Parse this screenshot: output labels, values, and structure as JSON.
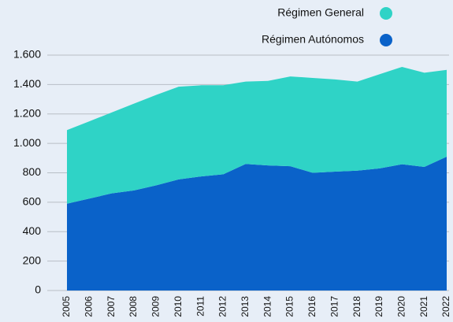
{
  "chart_data": {
    "type": "stacked-area",
    "categories": [
      "2005",
      "2006",
      "2007",
      "2008",
      "2009",
      "2010",
      "2011",
      "2012",
      "2013",
      "2014",
      "2015",
      "2016",
      "2017",
      "2018",
      "2019",
      "2020",
      "2021",
      "2022"
    ],
    "series": [
      {
        "name": "Régimen Autónomos",
        "color": "#0a62c9",
        "values": [
          590,
          625,
          660,
          680,
          715,
          755,
          775,
          790,
          860,
          850,
          845,
          800,
          808,
          815,
          830,
          858,
          840,
          910
        ]
      },
      {
        "name": "Régimen General",
        "color": "#2fd3c6",
        "values": [
          500,
          525,
          550,
          590,
          615,
          630,
          620,
          605,
          560,
          575,
          610,
          645,
          627,
          605,
          640,
          662,
          640,
          590
        ]
      }
    ],
    "ylim": [
      0,
      1600
    ],
    "yticks": [
      0,
      200,
      400,
      600,
      800,
      {
        "value": 1000,
        "label": "1.000"
      },
      {
        "value": 1200,
        "label": "1.200"
      },
      {
        "value": 1400,
        "label": "1.400"
      },
      {
        "value": 1600,
        "label": "1.600"
      }
    ],
    "grid": true,
    "legend": "top-right"
  }
}
